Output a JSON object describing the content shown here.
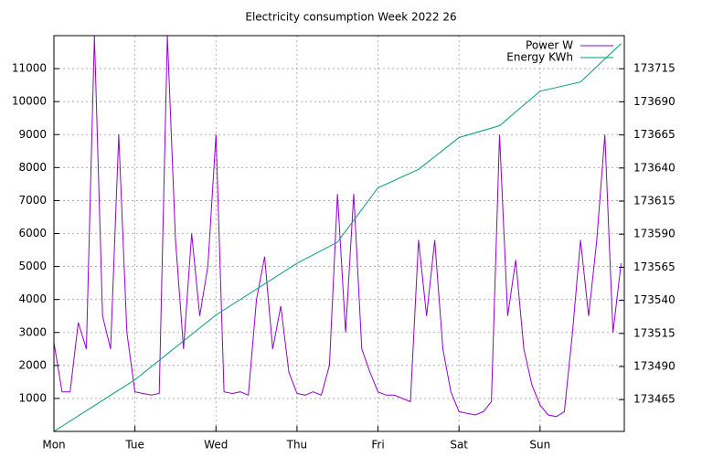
{
  "chart_data": {
    "type": "line",
    "title": "Electricity consumption Week 2022 26",
    "xlim": [
      0,
      7.04
    ],
    "xticks": [
      {
        "value": 0,
        "label": "Mon"
      },
      {
        "value": 1,
        "label": "Tue"
      },
      {
        "value": 2,
        "label": "Wed"
      },
      {
        "value": 3,
        "label": "Thu"
      },
      {
        "value": 4,
        "label": "Fri"
      },
      {
        "value": 5,
        "label": "Sat"
      },
      {
        "value": 6,
        "label": "Sun"
      }
    ],
    "ylim": [
      0,
      12000
    ],
    "yticks": [
      1000,
      2000,
      3000,
      4000,
      5000,
      6000,
      7000,
      8000,
      9000,
      10000,
      11000
    ],
    "y2lim": [
      173441,
      173740
    ],
    "y2ticks": [
      173465,
      173490,
      173515,
      173540,
      173565,
      173590,
      173615,
      173640,
      173665,
      173690,
      173715
    ],
    "grid": true,
    "legend": "top-right",
    "series": [
      {
        "name": "Power W",
        "color": "#9400d3",
        "x": [
          0,
          0.1,
          0.2,
          0.3,
          0.4,
          0.5,
          0.6,
          0.7,
          0.8,
          0.9,
          1,
          1.1,
          1.2,
          1.3,
          1.4,
          1.5,
          1.6,
          1.7,
          1.8,
          1.9,
          2,
          2.1,
          2.2,
          2.3,
          2.4,
          2.5,
          2.6,
          2.7,
          2.8,
          2.9,
          3,
          3.1,
          3.2,
          3.3,
          3.4,
          3.5,
          3.6,
          3.7,
          3.8,
          3.9,
          4,
          4.1,
          4.2,
          4.3,
          4.4,
          4.5,
          4.6,
          4.7,
          4.8,
          4.9,
          5,
          5.1,
          5.2,
          5.3,
          5.4,
          5.5,
          5.6,
          5.7,
          5.8,
          5.9,
          6,
          6.1,
          6.2,
          6.3,
          6.4,
          6.5,
          6.6,
          6.7,
          6.8,
          6.9,
          7
        ],
        "values": [
          2700,
          1200,
          1200,
          3300,
          2500,
          12000,
          3500,
          2500,
          9000,
          3000,
          1200,
          1150,
          1100,
          1150,
          12000,
          5800,
          2500,
          6000,
          3500,
          5000,
          9000,
          1200,
          1150,
          1200,
          1100,
          4000,
          5300,
          2500,
          3800,
          1800,
          1150,
          1100,
          1200,
          1100,
          2000,
          7200,
          3000,
          7200,
          2500,
          1800,
          1200,
          1100,
          1100,
          1000,
          900,
          5800,
          3500,
          5800,
          2500,
          1200,
          600,
          550,
          500,
          600,
          900,
          9000,
          3500,
          5200,
          2500,
          1400,
          800,
          500,
          450,
          600,
          3000,
          5800,
          3500,
          5800,
          9000,
          3000,
          5100
        ]
      },
      {
        "name": "Energy KWh",
        "color": "#009e73",
        "axis": "y2",
        "x": [
          0,
          1,
          2,
          3,
          3.5,
          4,
          4.5,
          5,
          5.5,
          6,
          6.5,
          7
        ],
        "values": [
          173441,
          173480,
          173529,
          173568,
          173584,
          173625,
          173639,
          173663,
          173672,
          173698,
          173705,
          173734
        ]
      }
    ]
  }
}
